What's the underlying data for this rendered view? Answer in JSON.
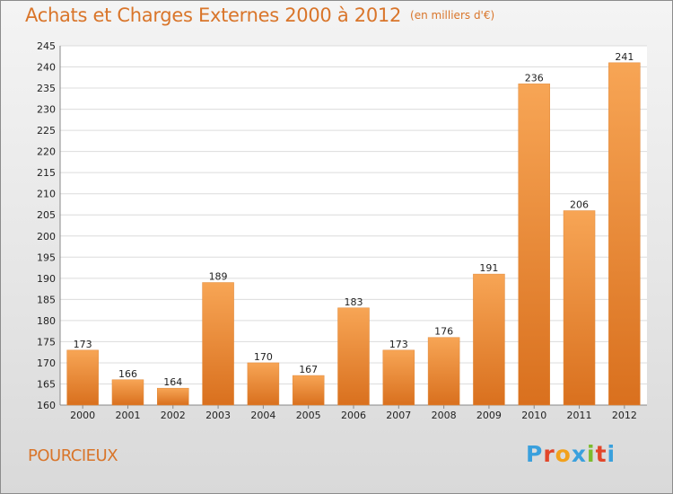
{
  "chart_data": {
    "type": "bar",
    "title": "Achats et Charges Externes 2000 à 2012",
    "subtitle": "(en milliers d'€)",
    "categories": [
      "2000",
      "2001",
      "2002",
      "2003",
      "2004",
      "2005",
      "2006",
      "2007",
      "2008",
      "2009",
      "2010",
      "2011",
      "2012"
    ],
    "values": [
      173,
      166,
      164,
      189,
      170,
      167,
      183,
      173,
      176,
      191,
      236,
      206,
      241
    ],
    "ylim": [
      160,
      245
    ],
    "yticks": [
      160,
      165,
      170,
      175,
      180,
      185,
      190,
      195,
      200,
      205,
      210,
      215,
      220,
      225,
      230,
      235,
      240,
      245
    ],
    "grid": true,
    "bar_color_light": "#f7a555",
    "bar_color_dark": "#d9701e"
  },
  "footer": {
    "commune": "POURCIEUX",
    "logo": "Proxiti",
    "logo_colors": [
      "#3aa0dd",
      "#e2462a",
      "#f2a11c",
      "#3aa0dd",
      "#7cbb2d",
      "#e2462a",
      "#3aa0dd"
    ]
  }
}
